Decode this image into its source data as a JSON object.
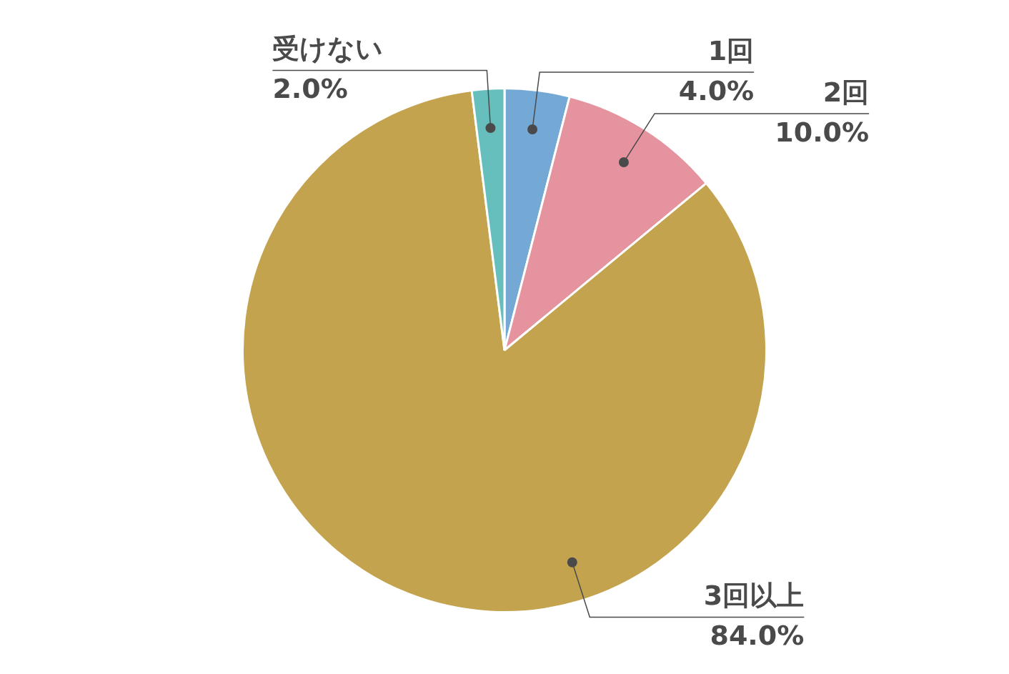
{
  "chart_data": {
    "type": "pie",
    "categories": [
      "1回",
      "2回",
      "3回以上",
      "受けない"
    ],
    "values": [
      4.0,
      10.0,
      84.0,
      2.0
    ],
    "colors": [
      "#74a9d6",
      "#e5939e",
      "#c3a34e",
      "#67bfbd"
    ],
    "value_labels": [
      "4.0%",
      "10.0%",
      "84.0%",
      "2.0%"
    ]
  }
}
